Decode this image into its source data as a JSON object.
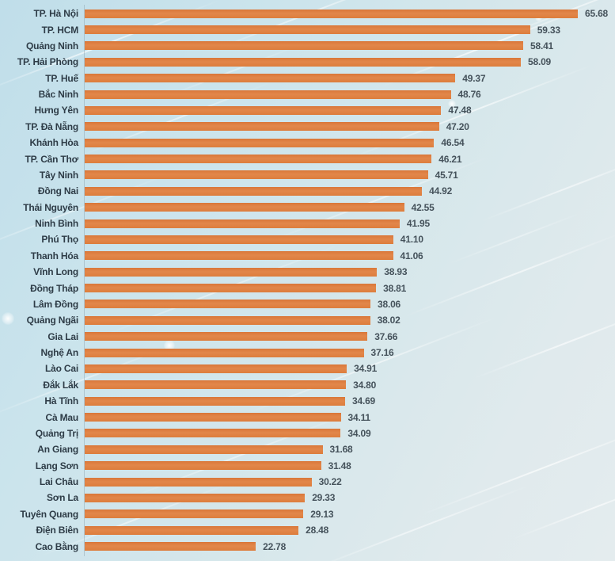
{
  "chart_data": {
    "type": "bar",
    "orientation": "horizontal",
    "title": "",
    "xlabel": "",
    "ylabel": "",
    "xlim": [
      0,
      68
    ],
    "grid": false,
    "legend": false,
    "categories": [
      "TP. Hà Nội",
      "TP. HCM",
      "Quảng Ninh",
      "TP. Hải Phòng",
      "TP. Huế",
      "Bắc Ninh",
      "Hưng Yên",
      "TP. Đà Nẵng",
      "Khánh Hòa",
      "TP. Cần Thơ",
      "Tây Ninh",
      "Đồng Nai",
      "Thái Nguyên",
      "Ninh Bình",
      "Phú Thọ",
      "Thanh Hóa",
      "Vĩnh Long",
      "Đồng Tháp",
      "Lâm Đồng",
      "Quảng Ngãi",
      "Gia Lai",
      "Nghệ An",
      "Lào Cai",
      "Đắk Lắk",
      "Hà Tĩnh",
      "Cà Mau",
      "Quảng Trị",
      "An Giang",
      "Lạng Sơn",
      "Lai Châu",
      "Sơn La",
      "Tuyên Quang",
      "Điện Biên",
      "Cao Bằng"
    ],
    "values": [
      65.68,
      59.33,
      58.41,
      58.09,
      49.37,
      48.76,
      47.48,
      47.2,
      46.54,
      46.21,
      45.71,
      44.92,
      42.55,
      41.95,
      41.1,
      41.06,
      38.93,
      38.81,
      38.06,
      38.02,
      37.66,
      37.16,
      34.91,
      34.8,
      34.69,
      34.11,
      34.09,
      31.68,
      31.48,
      30.22,
      29.33,
      29.13,
      28.48,
      22.78
    ],
    "value_labels": [
      "65.68",
      "59.33",
      "58.41",
      "58.09",
      "49.37",
      "48.76",
      "47.48",
      "47.20",
      "46.54",
      "46.21",
      "45.71",
      "44.92",
      "42.55",
      "41.95",
      "41.10",
      "41.06",
      "38.93",
      "38.81",
      "38.06",
      "38.02",
      "37.66",
      "37.16",
      "34.91",
      "34.80",
      "34.69",
      "34.11",
      "34.09",
      "31.68",
      "31.48",
      "30.22",
      "29.33",
      "29.13",
      "28.48",
      "22.78"
    ],
    "colors": {
      "bar": "#dd7d3d",
      "category_label": "#2e3c47",
      "value_label": "#45525b",
      "axis_line": "#7d94a0",
      "background_top_left": "#c0deea",
      "background_bottom_right": "#e4ecee"
    }
  }
}
